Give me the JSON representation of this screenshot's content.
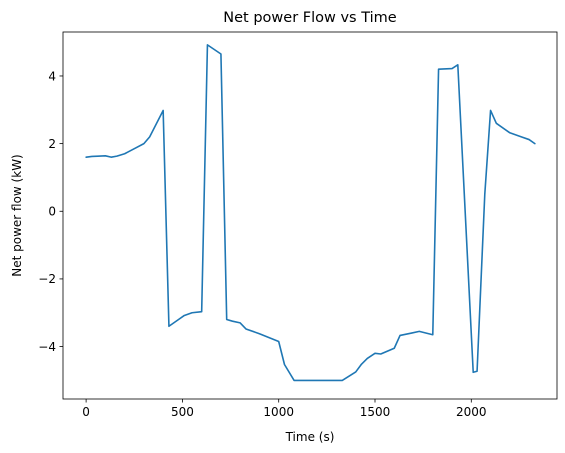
{
  "chart_data": {
    "type": "line",
    "title": "Net power Flow vs Time",
    "xlabel": "Time (s)",
    "ylabel": "Net power flow (kW)",
    "xlim": [
      -120,
      2445
    ],
    "ylim": [
      -5.55,
      5.3
    ],
    "grid": false,
    "legend": "none",
    "x_ticks": [
      0,
      500,
      1000,
      1500,
      2000
    ],
    "x_tick_labels": [
      "0",
      "500",
      "1000",
      "1500",
      "2000"
    ],
    "y_ticks": [
      -4,
      -2,
      0,
      2,
      4
    ],
    "y_tick_labels": [
      "−4",
      "−2",
      "0",
      "2",
      "4"
    ],
    "series": [
      {
        "color": "#1f77b4",
        "x": [
          0,
          30,
          60,
          100,
          130,
          160,
          200,
          260,
          300,
          330,
          400,
          430,
          480,
          510,
          550,
          600,
          630,
          700,
          730,
          760,
          800,
          830,
          900,
          1000,
          1030,
          1080,
          1130,
          1330,
          1400,
          1430,
          1460,
          1500,
          1530,
          1600,
          1630,
          1690,
          1730,
          1800,
          1830,
          1900,
          1930,
          2010,
          2030,
          2070,
          2100,
          2130,
          2200,
          2260,
          2300,
          2330
        ],
        "y": [
          1.6,
          1.62,
          1.63,
          1.64,
          1.6,
          1.63,
          1.7,
          1.88,
          2.0,
          2.2,
          2.98,
          -3.4,
          -3.2,
          -3.08,
          -3.0,
          -2.97,
          4.92,
          4.65,
          -3.2,
          -3.25,
          -3.3,
          -3.48,
          -3.62,
          -3.85,
          -4.53,
          -5.0,
          -5.0,
          -5.0,
          -4.75,
          -4.52,
          -4.35,
          -4.2,
          -4.22,
          -4.05,
          -3.67,
          -3.6,
          -3.55,
          -3.65,
          4.2,
          4.22,
          4.33,
          -4.76,
          -4.73,
          0.5,
          2.98,
          2.6,
          2.32,
          2.2,
          2.12,
          2.0
        ]
      }
    ]
  }
}
